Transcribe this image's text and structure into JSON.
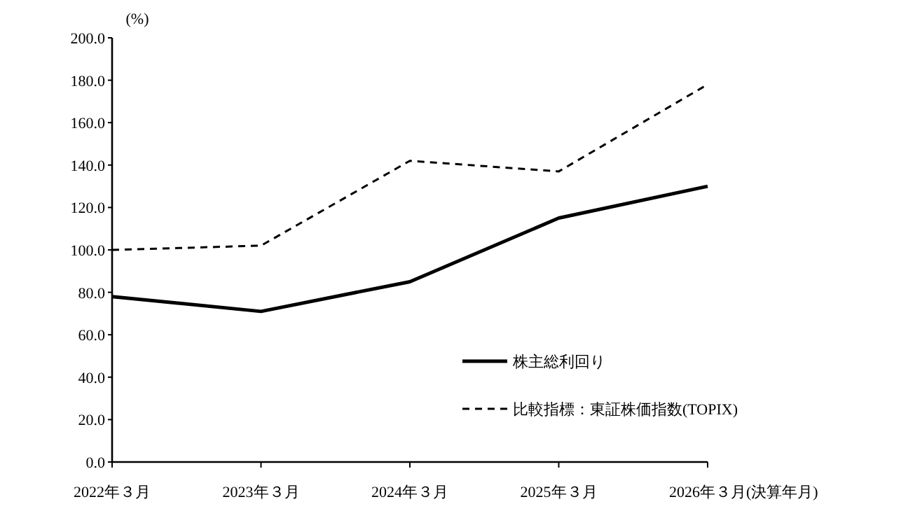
{
  "chart_data": {
    "type": "line",
    "ylabel": "(%)",
    "xlabel": "(決算年月)",
    "categories": [
      "2022年３月",
      "2023年３月",
      "2024年３月",
      "2025年３月",
      "2026年３月"
    ],
    "series": [
      {
        "name": "株主総利回り",
        "color": "#000000",
        "line_style": "solid",
        "values": [
          78,
          71,
          85,
          115,
          130
        ]
      },
      {
        "name": "比較指標：東証株価指数(TOPIX)",
        "color": "#000000",
        "line_style": "dashed",
        "values": [
          100,
          102,
          142,
          137,
          178
        ]
      }
    ],
    "ylim": [
      0,
      200
    ],
    "yticks": [
      {
        "value": 0,
        "label": "0.0"
      },
      {
        "value": 20,
        "label": "20.0"
      },
      {
        "value": 40,
        "label": "40.0"
      },
      {
        "value": 60,
        "label": "60.0"
      },
      {
        "value": 80,
        "label": "80.0"
      },
      {
        "value": 100,
        "label": "100.0"
      },
      {
        "value": 120,
        "label": "120.0"
      },
      {
        "value": 140,
        "label": "140.0"
      },
      {
        "value": 160,
        "label": "160.0"
      },
      {
        "value": 180,
        "label": "180.0"
      },
      {
        "value": 200,
        "label": "200.0"
      }
    ],
    "grid": false,
    "legend": "bottom right",
    "marker": "none"
  }
}
